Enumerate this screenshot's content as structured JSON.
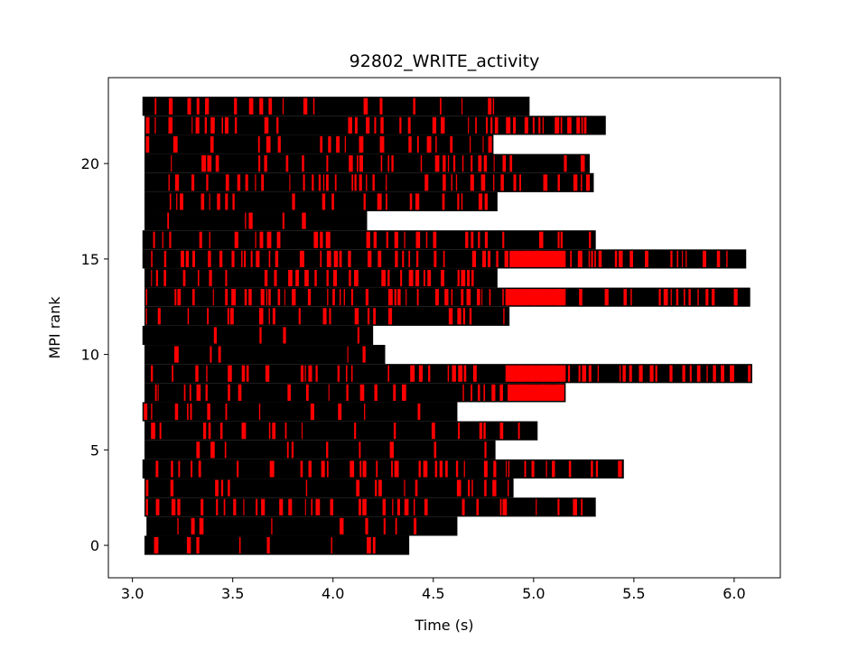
{
  "chart_data": {
    "type": "bar",
    "title": "92802_WRITE_activity",
    "xlabel": "Time (s)",
    "ylabel": "MPI rank",
    "xlim": [
      2.88,
      6.23
    ],
    "ylim": [
      -1.7,
      24.5
    ],
    "xticks": [
      3.0,
      3.5,
      4.0,
      4.5,
      5.0,
      5.5,
      6.0
    ],
    "xtick_labels": [
      "3.0",
      "3.5",
      "4.0",
      "4.5",
      "5.0",
      "5.5",
      "6.0"
    ],
    "yticks": [
      0,
      5,
      10,
      15,
      20
    ],
    "ytick_labels": [
      "0",
      "5",
      "10",
      "15",
      "20"
    ],
    "grid": false,
    "legend": "none",
    "bar_fill_color": "#ff0000",
    "bar_edge_color": "#000000",
    "bar_height": 1.0,
    "ranks": [
      {
        "rank": 0,
        "start": 3.06,
        "end": 4.38,
        "red_density": 0.25
      },
      {
        "rank": 1,
        "start": 3.07,
        "end": 4.62,
        "red_density": 0.3
      },
      {
        "rank": 2,
        "start": 3.06,
        "end": 5.31,
        "red_density": 0.45
      },
      {
        "rank": 3,
        "start": 3.06,
        "end": 4.9,
        "red_density": 0.4
      },
      {
        "rank": 4,
        "start": 3.05,
        "end": 5.45,
        "red_density": 0.5
      },
      {
        "rank": 5,
        "start": 3.06,
        "end": 4.81,
        "red_density": 0.25
      },
      {
        "rank": 6,
        "start": 3.06,
        "end": 5.02,
        "red_density": 0.35
      },
      {
        "rank": 7,
        "start": 3.05,
        "end": 4.62,
        "red_density": 0.3
      },
      {
        "rank": 8,
        "start": 3.06,
        "end": 5.16,
        "red_density": 0.35,
        "solid_red_from": 4.88
      },
      {
        "rank": 9,
        "start": 3.06,
        "end": 6.09,
        "red_density": 0.55,
        "solid_red_from": 4.86,
        "solid_red_to": 5.16
      },
      {
        "rank": 10,
        "start": 3.06,
        "end": 4.26,
        "red_density": 0.2
      },
      {
        "rank": 11,
        "start": 3.05,
        "end": 4.2,
        "red_density": 0.15
      },
      {
        "rank": 12,
        "start": 3.06,
        "end": 4.88,
        "red_density": 0.35
      },
      {
        "rank": 13,
        "start": 3.06,
        "end": 6.08,
        "red_density": 0.55,
        "solid_red_from": 4.86,
        "solid_red_to": 5.16
      },
      {
        "rank": 14,
        "start": 3.06,
        "end": 4.82,
        "red_density": 0.4
      },
      {
        "rank": 15,
        "start": 3.05,
        "end": 6.06,
        "red_density": 0.6,
        "solid_red_from": 4.88,
        "solid_red_to": 5.16
      },
      {
        "rank": 16,
        "start": 3.05,
        "end": 5.31,
        "red_density": 0.4
      },
      {
        "rank": 17,
        "start": 3.06,
        "end": 4.17,
        "red_density": 0.15
      },
      {
        "rank": 18,
        "start": 3.06,
        "end": 4.82,
        "red_density": 0.3
      },
      {
        "rank": 19,
        "start": 3.06,
        "end": 5.3,
        "red_density": 0.45
      },
      {
        "rank": 20,
        "start": 3.06,
        "end": 5.28,
        "red_density": 0.35
      },
      {
        "rank": 21,
        "start": 3.06,
        "end": 4.8,
        "red_density": 0.3
      },
      {
        "rank": 22,
        "start": 3.06,
        "end": 5.36,
        "red_density": 0.45
      },
      {
        "rank": 23,
        "start": 3.05,
        "end": 4.98,
        "red_density": 0.35
      }
    ]
  }
}
